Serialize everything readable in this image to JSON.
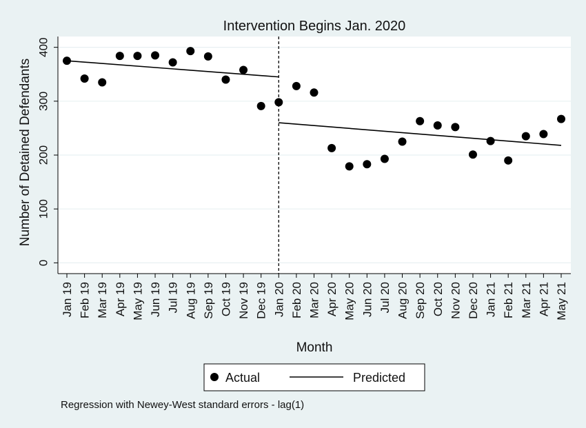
{
  "chart_data": {
    "type": "scatter",
    "title": "Intervention Begins Jan. 2020",
    "xlabel": "Month",
    "ylabel": "Number of Detained Defendants",
    "ylim": [
      -20,
      420
    ],
    "yticks": [
      0,
      100,
      200,
      300,
      400
    ],
    "grid": true,
    "legend_position": "bottom",
    "categories": [
      "Jan 19",
      "Feb 19",
      "Mar 19",
      "Apr 19",
      "May 19",
      "Jun 19",
      "Jul 19",
      "Aug 19",
      "Sep 19",
      "Oct 19",
      "Nov 19",
      "Dec 19",
      "Jan 20",
      "Feb 20",
      "Mar 20",
      "Apr 20",
      "May 20",
      "Jun 20",
      "Jul 20",
      "Aug 20",
      "Sep 20",
      "Oct 20",
      "Nov 20",
      "Dec 20",
      "Jan 21",
      "Feb 21",
      "Mar 21",
      "Apr 21",
      "May 21"
    ],
    "series": [
      {
        "name": "Actual",
        "kind": "points",
        "values": [
          375,
          342,
          335,
          384,
          384,
          385,
          372,
          393,
          383,
          340,
          358,
          291,
          298,
          328,
          316,
          213,
          179,
          183,
          193,
          225,
          263,
          255,
          252,
          201,
          226,
          190,
          235,
          239,
          267
        ]
      },
      {
        "name": "Predicted",
        "kind": "line",
        "segments": [
          {
            "start": "Jan 19",
            "end": "Jan 20",
            "y_start": 375,
            "y_end": 345
          },
          {
            "start": "Jan 20",
            "end": "May 21",
            "y_start": 260,
            "y_end": 218
          }
        ]
      }
    ],
    "annotations": [
      {
        "type": "vertical-dashed-line",
        "at": "Jan 20"
      }
    ],
    "note": "Regression with Newey-West standard errors - lag(1)"
  },
  "colors": {
    "page_background": "#eaf2f3",
    "plot_background": "#ffffff",
    "grid": "#e8f0f2",
    "ink": "#000000"
  }
}
